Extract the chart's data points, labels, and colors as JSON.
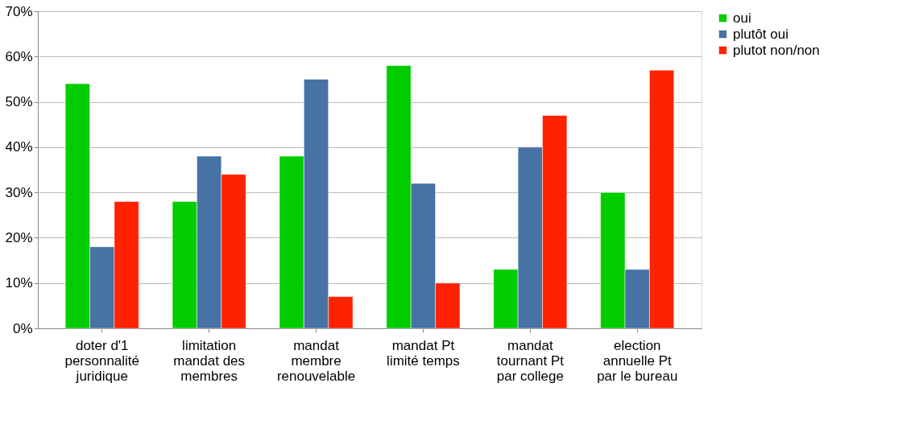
{
  "chart_data": {
    "type": "bar",
    "categories": [
      "doter d'1\npersonnalité\njuridique",
      "limitation\nmandat des\nmembres",
      "mandat\nmembre\nrenouvelable",
      "mandat Pt\nlimité temps",
      "mandat\ntournant Pt\npar college",
      "election\nannuelle Pt\npar le bureau"
    ],
    "series": [
      {
        "name": "oui",
        "color": "#00cc00",
        "values": [
          54,
          28,
          38,
          58,
          13,
          30
        ]
      },
      {
        "name": "plutôt oui",
        "color": "#4672a4",
        "values": [
          18,
          38,
          55,
          32,
          40,
          13
        ]
      },
      {
        "name": "plutot non/non",
        "color": "#ff2200",
        "values": [
          28,
          34,
          7,
          10,
          47,
          57
        ]
      }
    ],
    "ylim": [
      0,
      70
    ],
    "yticks": [
      {
        "value": 0,
        "label": "0%"
      },
      {
        "value": 10,
        "label": "10%"
      },
      {
        "value": 20,
        "label": "20%"
      },
      {
        "value": 30,
        "label": "30%"
      },
      {
        "value": 40,
        "label": "40%"
      },
      {
        "value": 50,
        "label": "50%"
      },
      {
        "value": 60,
        "label": "60%"
      },
      {
        "value": 70,
        "label": "70%"
      }
    ],
    "grid": "y",
    "legend": "right"
  }
}
